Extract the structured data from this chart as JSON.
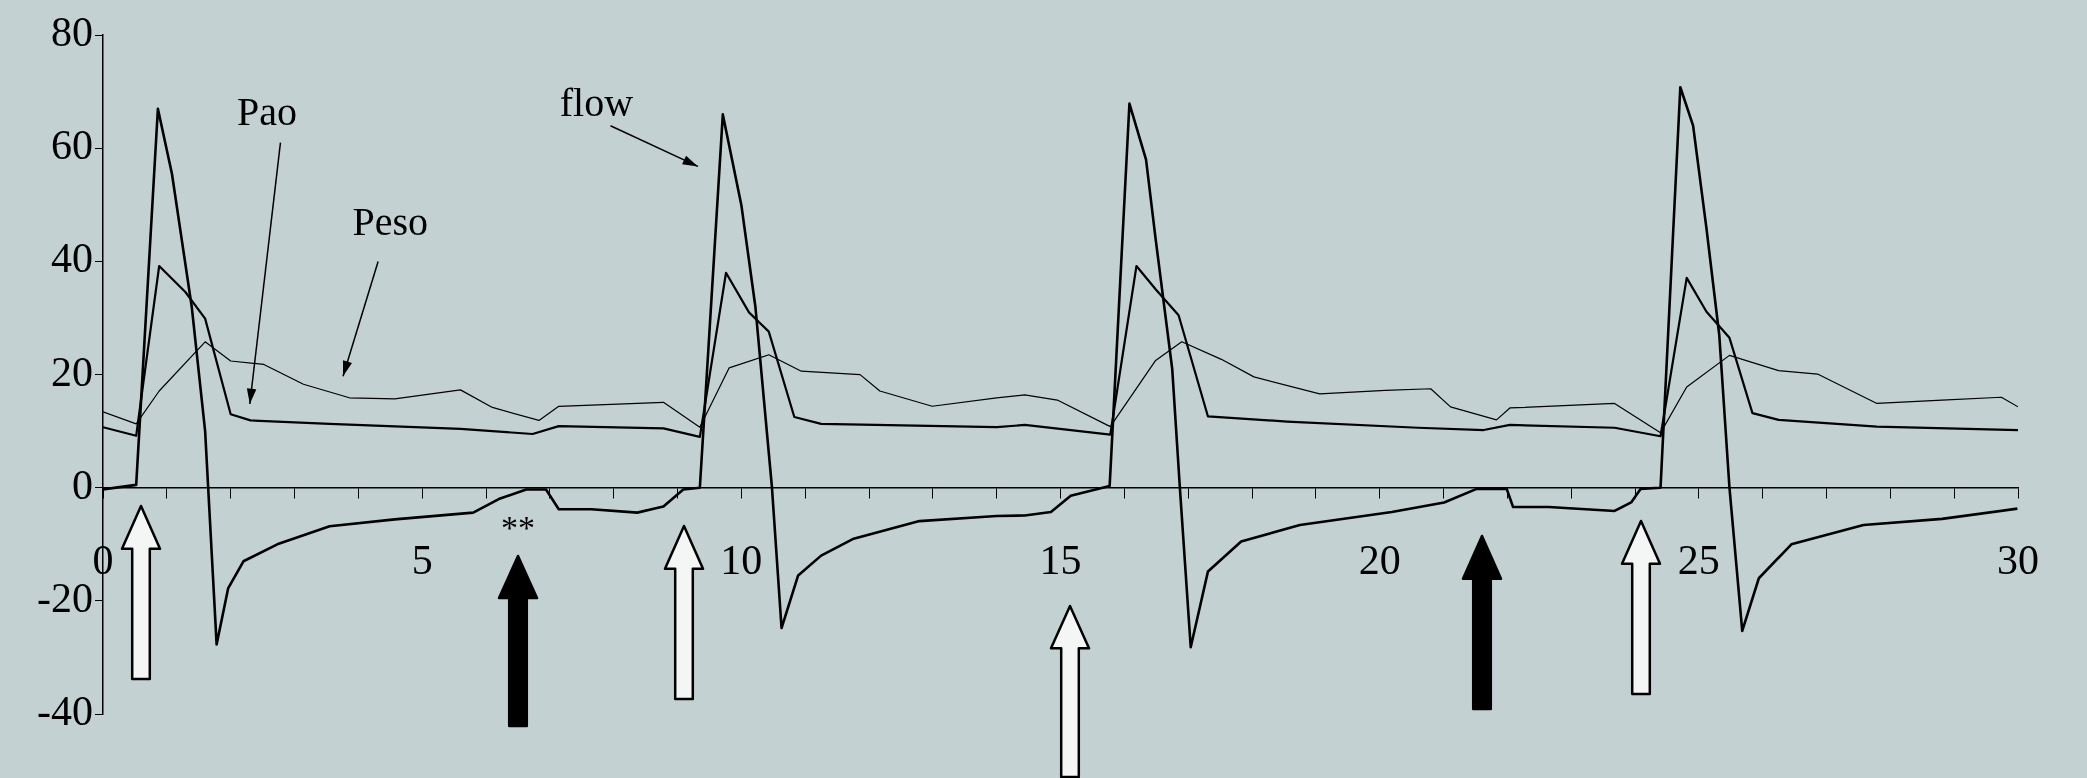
{
  "chart_data": {
    "type": "line",
    "xlim": [
      0,
      30
    ],
    "xticks": [
      0,
      {
        "value": 1,
        "label": null
      },
      {
        "value": 2,
        "label": null
      },
      {
        "value": 3,
        "label": null
      },
      {
        "value": 4,
        "label": null
      },
      5,
      {
        "value": 6,
        "label": null
      },
      {
        "value": 7,
        "label": null
      },
      {
        "value": 8,
        "label": null
      },
      {
        "value": 9,
        "label": null
      },
      10,
      {
        "value": 11,
        "label": null
      },
      {
        "value": 12,
        "label": null
      },
      {
        "value": 13,
        "label": null
      },
      {
        "value": 14,
        "label": null
      },
      15,
      {
        "value": 16,
        "label": null
      },
      {
        "value": 17,
        "label": null
      },
      {
        "value": 18,
        "label": null
      },
      {
        "value": 19,
        "label": null
      },
      20,
      {
        "value": 21,
        "label": null
      },
      {
        "value": 22,
        "label": null
      },
      {
        "value": 23,
        "label": null
      },
      {
        "value": 24,
        "label": null
      },
      25,
      {
        "value": 26,
        "label": null
      },
      {
        "value": 27,
        "label": null
      },
      {
        "value": 28,
        "label": null
      },
      {
        "value": 29,
        "label": null
      },
      30
    ],
    "ylim": [
      -40,
      80
    ],
    "yticks": [
      -40,
      -20,
      0,
      20,
      40,
      60,
      80
    ],
    "grid": false,
    "marker": "none",
    "line_style": "solid",
    "annotations": [
      "**"
    ],
    "series": [
      {
        "name": "flow",
        "color": "#000000",
        "x": [
          0,
          0.52,
          0.86,
          1.08,
          1.39,
          1.6,
          1.78,
          1.96,
          2.2,
          2.73,
          3.55,
          4.57,
          5.8,
          6.2,
          6.63,
          6.94,
          7.14,
          7.65,
          8.37,
          8.78,
          9.09,
          9.35,
          9.71,
          10.0,
          10.22,
          10.48,
          10.63,
          10.89,
          11.25,
          11.76,
          12.79,
          14.0,
          14.44,
          14.85,
          15.16,
          15.77,
          16.08,
          16.34,
          16.49,
          16.75,
          16.87,
          17.04,
          17.31,
          17.83,
          18.75,
          20.19,
          21.01,
          21.52,
          21.99,
          22.09,
          22.65,
          23.68,
          23.94,
          24.09,
          24.4,
          24.71,
          24.91,
          25.12,
          25.32,
          25.48,
          25.68,
          25.94,
          26.45,
          27.58,
          28.81,
          29.99
        ],
        "values": [
          -0.3,
          0.5,
          67,
          55.5,
          32,
          10,
          -27.7,
          -17.8,
          -13,
          -10,
          -6.8,
          -5.6,
          -4.4,
          -2,
          -0.3,
          -0.3,
          -3.8,
          -3.8,
          -4.4,
          -3.3,
          -0.3,
          0,
          66,
          50,
          32,
          0,
          -24.8,
          -15.5,
          -12,
          -9,
          -5.9,
          -5,
          -4.9,
          -4.3,
          -1.4,
          0.3,
          67.9,
          58,
          44,
          21,
          0,
          -28.2,
          -14.8,
          -9.5,
          -6.6,
          -4.3,
          -2.6,
          -0.2,
          -0.2,
          -3.4,
          -3.4,
          -4.1,
          -2.6,
          -0.2,
          0,
          70.8,
          64,
          45.8,
          27,
          0,
          -25.3,
          -16,
          -10,
          -6.6,
          -5.5,
          -3.7
        ]
      },
      {
        "name": "Pao",
        "color": "#000000",
        "x": [
          0,
          0.52,
          0.88,
          1.29,
          1.6,
          2.0,
          2.31,
          3.55,
          5.6,
          6.73,
          7.14,
          8.78,
          9.35,
          9.76,
          10.12,
          10.43,
          10.83,
          11.25,
          14.0,
          14.44,
          15.78,
          16.19,
          16.49,
          16.85,
          17.31,
          18.55,
          20.6,
          21.63,
          22.04,
          23.68,
          24.4,
          24.81,
          25.12,
          25.48,
          25.84,
          26.25,
          27.79,
          30.0
        ],
        "values": [
          10.7,
          9.2,
          39.2,
          34.6,
          29.9,
          13,
          11.9,
          11.3,
          10.4,
          9.5,
          10.9,
          10.5,
          9,
          38,
          31,
          27.6,
          12.5,
          11.3,
          10.7,
          11.1,
          9.4,
          39.2,
          35.1,
          30.5,
          12.6,
          11.7,
          10.6,
          10.2,
          11.1,
          10.6,
          9.1,
          37.1,
          31.1,
          26.5,
          13.2,
          12,
          10.8,
          10.2
        ]
      },
      {
        "name": "Peso",
        "color": "#000000",
        "x": [
          0,
          0.52,
          0.88,
          1.6,
          2.0,
          2.52,
          3.14,
          3.86,
          4.57,
          5.6,
          6.1,
          6.83,
          7.14,
          8.78,
          9.35,
          9.81,
          10.43,
          10.94,
          11.86,
          12.17,
          12.99,
          14.0,
          14.44,
          14.95,
          15.78,
          16.49,
          16.9,
          17.52,
          18.03,
          19.06,
          20.09,
          20.8,
          21.11,
          21.83,
          22.04,
          23.68,
          24.4,
          24.81,
          25.48,
          26.25,
          26.86,
          27.79,
          28.81,
          29.74,
          30.0
        ],
        "values": [
          13.4,
          11.3,
          17.1,
          25.8,
          22.4,
          21.8,
          18.3,
          15.9,
          15.7,
          17.3,
          14.2,
          11.9,
          14.4,
          15.1,
          10.7,
          21.2,
          23.5,
          20.6,
          20,
          17.1,
          14.4,
          15.9,
          16.4,
          15.5,
          10.8,
          22.5,
          25.8,
          22.7,
          19.6,
          16.6,
          17.2,
          17.5,
          14.3,
          12,
          14.1,
          14.9,
          9.7,
          17.8,
          23.4,
          20.7,
          20.1,
          14.9,
          15.5,
          16,
          14.3
        ]
      }
    ]
  }
}
